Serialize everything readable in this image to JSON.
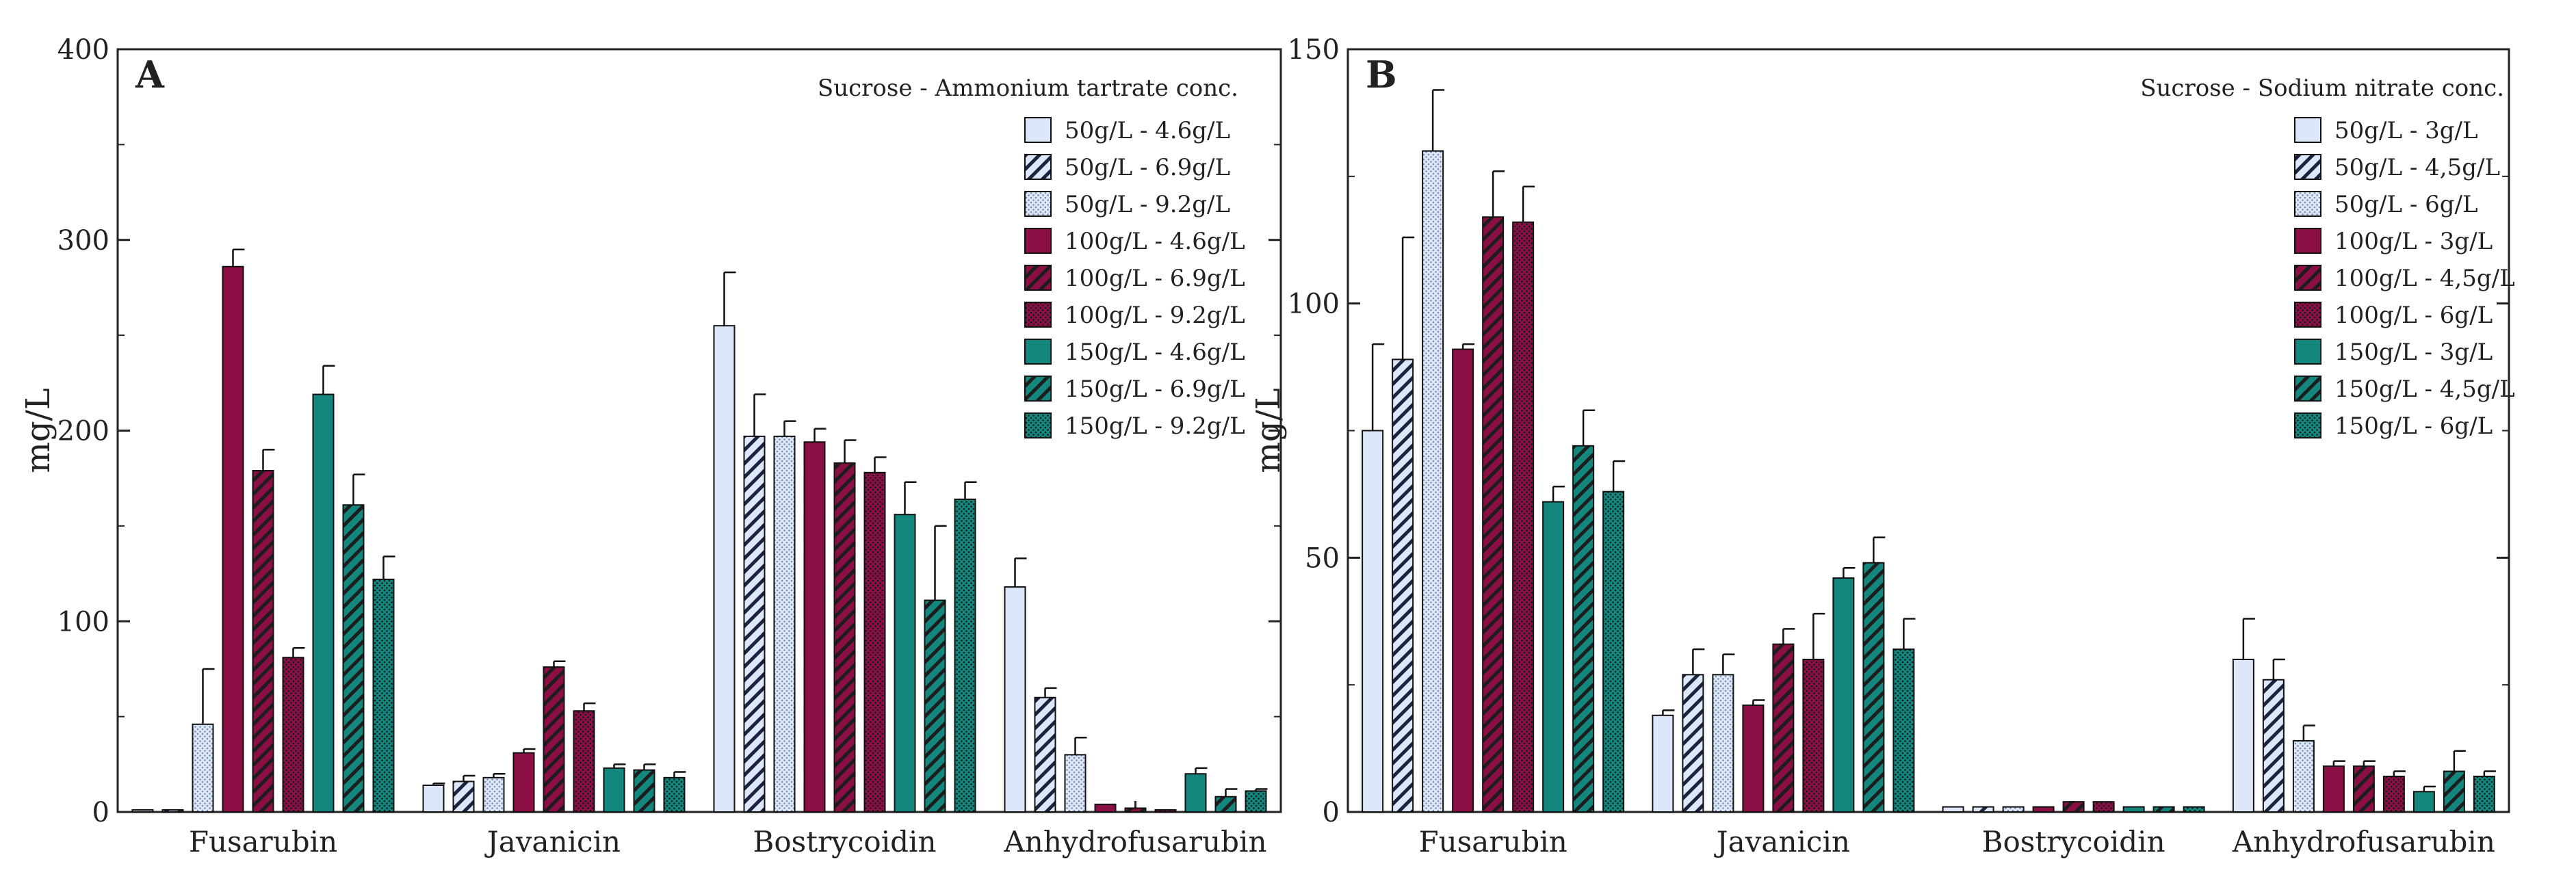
{
  "colors": {
    "light_blue": "#dce8f9",
    "maroon": "#8b0f45",
    "teal": "#13877d",
    "axis": "#222222",
    "pattern_lines": "#1c2340"
  },
  "chart_data": [
    {
      "type": "bar",
      "panel_label": "A",
      "title": "",
      "xlabel": "",
      "ylabel": "mg/L",
      "ylim": [
        0,
        400
      ],
      "yticks": [
        0,
        100,
        200,
        300,
        400
      ],
      "grid": false,
      "legend_position": "top-right",
      "legend_title": "Sucrose - Ammonium tartrate conc.",
      "categories": [
        "Fusarubin",
        "Javanicin",
        "Bostrycoidin",
        "Anhydrofusarubin"
      ],
      "series": [
        {
          "name": "50g/L - 4.6g/L",
          "color": "light_blue",
          "pattern": "solid",
          "values": [
            1,
            14,
            255,
            118
          ],
          "errors": [
            0,
            1,
            28,
            15
          ]
        },
        {
          "name": "50g/L - 6.9g/L",
          "color": "light_blue",
          "pattern": "hatch",
          "values": [
            1,
            16,
            197,
            60
          ],
          "errors": [
            0,
            3,
            22,
            5
          ]
        },
        {
          "name": "50g/L - 9.2g/L",
          "color": "light_blue",
          "pattern": "dotted",
          "values": [
            46,
            18,
            197,
            30
          ],
          "errors": [
            29,
            2,
            8,
            9
          ]
        },
        {
          "name": "100g/L - 4.6g/L",
          "color": "maroon",
          "pattern": "solid",
          "values": [
            286,
            31,
            194,
            4
          ],
          "errors": [
            9,
            2,
            7,
            0
          ]
        },
        {
          "name": "100g/L - 6.9g/L",
          "color": "maroon",
          "pattern": "hatch",
          "values": [
            179,
            76,
            183,
            2
          ],
          "errors": [
            11,
            3,
            12,
            0
          ]
        },
        {
          "name": "100g/L - 9.2g/L",
          "color": "maroon",
          "pattern": "dotted",
          "values": [
            81,
            53,
            178,
            0
          ],
          "errors": [
            5,
            4,
            8,
            0
          ]
        },
        {
          "name": "150g/L - 4.6g/L",
          "color": "teal",
          "pattern": "solid",
          "values": [
            219,
            23,
            156,
            20
          ],
          "errors": [
            15,
            2,
            17,
            3
          ]
        },
        {
          "name": "150g/L - 6.9g/L",
          "color": "teal",
          "pattern": "hatch",
          "values": [
            161,
            22,
            111,
            8
          ],
          "errors": [
            16,
            3,
            39,
            4
          ]
        },
        {
          "name": "150g/L - 9.2g/L",
          "color": "teal",
          "pattern": "dotted",
          "values": [
            122,
            18,
            164,
            11
          ],
          "errors": [
            12,
            3,
            9,
            1
          ]
        }
      ]
    },
    {
      "type": "bar",
      "panel_label": "B",
      "title": "",
      "xlabel": "",
      "ylabel": "mg/L",
      "ylim": [
        0,
        150
      ],
      "yticks": [
        0,
        50,
        100,
        150
      ],
      "grid": false,
      "legend_position": "top-right",
      "legend_title": "Sucrose - Sodium nitrate conc.",
      "categories": [
        "Fusarubin",
        "Javanicin",
        "Bostrycoidin",
        "Anhydrofusarubin"
      ],
      "series": [
        {
          "name": "50g/L - 3g/L",
          "color": "light_blue",
          "pattern": "solid",
          "values": [
            75,
            19,
            1,
            30
          ],
          "errors": [
            17,
            1,
            0,
            8
          ]
        },
        {
          "name": "50g/L - 4,5g/L",
          "color": "light_blue",
          "pattern": "hatch",
          "values": [
            89,
            27,
            1,
            26
          ],
          "errors": [
            24,
            5,
            0,
            4
          ]
        },
        {
          "name": "50g/L - 6g/L",
          "color": "light_blue",
          "pattern": "dotted",
          "values": [
            130,
            27,
            1,
            14
          ],
          "errors": [
            12,
            4,
            0,
            3
          ]
        },
        {
          "name": "100g/L - 3g/L",
          "color": "maroon",
          "pattern": "solid",
          "values": [
            91,
            21,
            1,
            9
          ],
          "errors": [
            1,
            1,
            0,
            1
          ]
        },
        {
          "name": "100g/L - 4,5g/L",
          "color": "maroon",
          "pattern": "hatch",
          "values": [
            117,
            33,
            2,
            9
          ],
          "errors": [
            9,
            3,
            0,
            1
          ]
        },
        {
          "name": "100g/L - 6g/L",
          "color": "maroon",
          "pattern": "dotted",
          "values": [
            116,
            30,
            2,
            7
          ],
          "errors": [
            7,
            9,
            0,
            1
          ]
        },
        {
          "name": "150g/L - 3g/L",
          "color": "teal",
          "pattern": "solid",
          "values": [
            61,
            46,
            1,
            4
          ],
          "errors": [
            3,
            2,
            0,
            1
          ]
        },
        {
          "name": "150g/L - 4,5g/L",
          "color": "teal",
          "pattern": "hatch",
          "values": [
            72,
            49,
            1,
            8
          ],
          "errors": [
            7,
            5,
            0,
            4
          ]
        },
        {
          "name": "150g/L - 6g/L",
          "color": "teal",
          "pattern": "dotted",
          "values": [
            63,
            32,
            1,
            7
          ],
          "errors": [
            6,
            6,
            0,
            1
          ]
        }
      ]
    }
  ]
}
